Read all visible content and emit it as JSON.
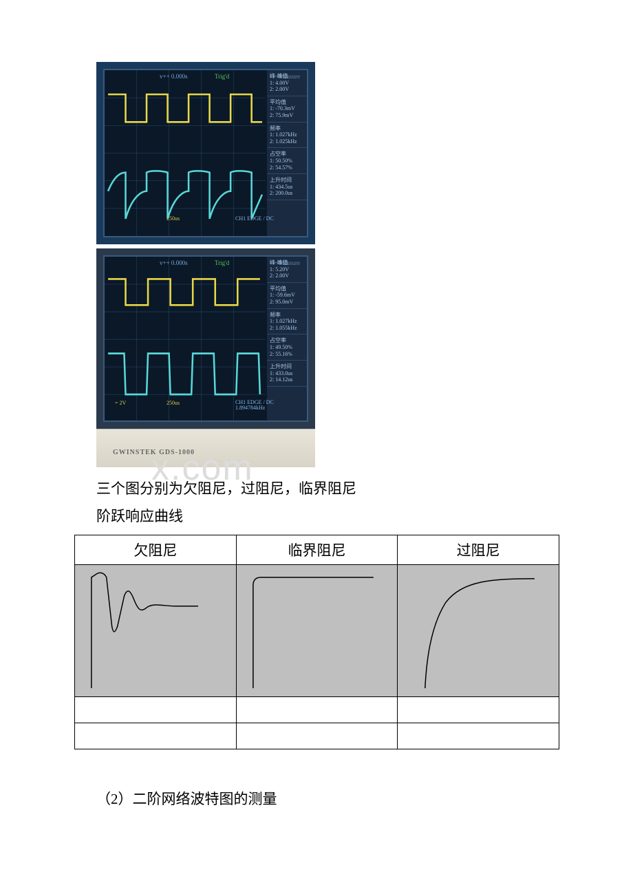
{
  "scope1": {
    "top_center": "v++ 0.000s",
    "top_right": "Trig'd",
    "top_far": "Measure",
    "side_items": [
      "峰-峰值\n1: 4.00V\n2: 2.00V",
      "平均值\n1: -70.3mV\n2: 75.9mV",
      "频率\n1: 1.027kHz\n2: 1.025kHz",
      "占空率\n1: 50.50%\n2: 54.57%",
      "上升时间\n1: 434.5us\n2: 200.0us"
    ],
    "bottom_center": "250us",
    "bottom_right": "CH1  EDGE  / DC",
    "wave1_color": "#e8d848",
    "wave2_color": "#58d8d8",
    "grid_color": "#2a4a6c"
  },
  "scope2": {
    "top_center": "v++ 0.000s",
    "top_right": "Trig'd",
    "top_far": "Measure",
    "side_items": [
      "峰-峰值\n1: 5.20V\n2: 2.00V",
      "平均值\n1: -59.6mV\n2: 95.0mV",
      "频率\n1: 1.027kHz\n2: 1.055kHz",
      "占空率\n1: 49.50%\n2: 55.16%",
      "上升时间\n1: 433.0us\n2: 14.12us"
    ],
    "bottom_left": "= 2V",
    "bottom_center": "250us",
    "bottom_right": "CH1  EDGE / DC\n1.894784kHz",
    "wave1_color": "#e8d848",
    "wave2_color": "#58d8d8",
    "grid_color": "#2a4a6c",
    "monitor_brand": "GWINSTEK  GDS-1000"
  },
  "watermark": "x.com",
  "caption1": "三个图分别为欠阻尼，过阻尼，临界阻尼",
  "caption2": "阶跃响应曲线",
  "table": {
    "headers": [
      "欠阻尼",
      "临界阻尼",
      "过阻尼"
    ],
    "curves": {
      "underdamped": {
        "type": "underdamped",
        "color": "#000",
        "bg": "#bfbfbf"
      },
      "critical": {
        "type": "critical",
        "color": "#000",
        "bg": "#bfbfbf"
      },
      "overdamped": {
        "type": "overdamped",
        "color": "#000",
        "bg": "#bfbfbf"
      }
    }
  },
  "section2": "（2）二阶网络波特图的测量"
}
